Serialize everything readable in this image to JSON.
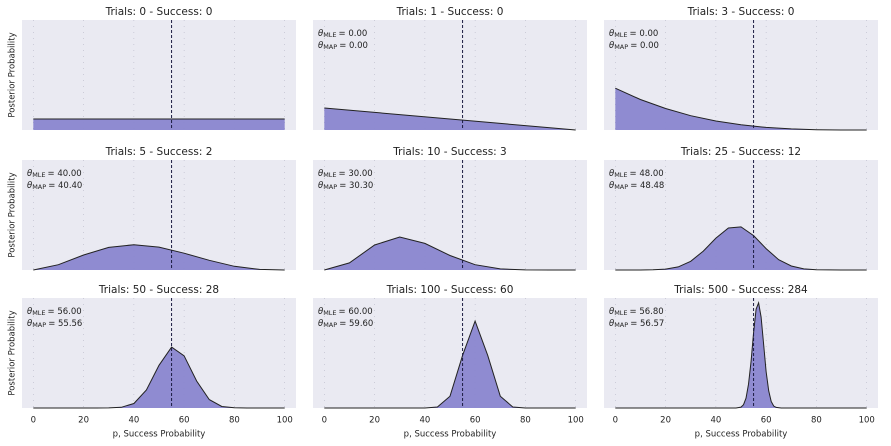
{
  "chart_data": [
    {
      "type": "area",
      "title": "Trials: 0 - Success: 0",
      "ylabel": "Posterior Probability",
      "x": [
        0,
        100
      ],
      "values": [
        0.1,
        0.1
      ],
      "xlim": [
        -4.5,
        104.5
      ],
      "ylim": [
        0,
        1
      ],
      "xticks": [
        0,
        20,
        40,
        60,
        80,
        100
      ],
      "xtick_labels": false,
      "vline": 55,
      "color": "#8a86cf",
      "grid": true,
      "annotations": []
    },
    {
      "type": "area",
      "title": "Trials: 1 - Success: 0",
      "x": [
        0,
        100
      ],
      "values": [
        0.2,
        0
      ],
      "xlim": [
        -4.5,
        104.5
      ],
      "ylim": [
        0,
        1
      ],
      "xticks": [
        0,
        20,
        40,
        60,
        80,
        100
      ],
      "xtick_labels": false,
      "vline": 55,
      "color": "#8a86cf",
      "grid": true,
      "annotations": [
        {
          "symbol": "θ",
          "subscript": "MLE",
          "text": "= 0.00"
        },
        {
          "symbol": "θ",
          "subscript": "MAP",
          "text": "= 0.00"
        }
      ]
    },
    {
      "type": "area",
      "title": "Trials: 3 - Success: 0",
      "x": [
        0,
        10,
        20,
        30,
        40,
        50,
        60,
        70,
        80,
        90,
        100
      ],
      "values": [
        0.38,
        0.277,
        0.195,
        0.13,
        0.082,
        0.048,
        0.024,
        0.01,
        0.003,
        0,
        0
      ],
      "xlim": [
        -4.5,
        104.5
      ],
      "ylim": [
        0,
        1
      ],
      "xticks": [
        0,
        20,
        40,
        60,
        80,
        100
      ],
      "xtick_labels": false,
      "vline": 55,
      "color": "#8a86cf",
      "grid": true,
      "annotations": [
        {
          "symbol": "θ",
          "subscript": "MLE",
          "text": "= 0.00"
        },
        {
          "symbol": "θ",
          "subscript": "MAP",
          "text": "= 0.00"
        }
      ]
    },
    {
      "type": "area",
      "title": "Trials: 5 - Success: 2",
      "ylabel": "Posterior Probability",
      "x": [
        0,
        10,
        20,
        30,
        40,
        50,
        60,
        70,
        80,
        90,
        100
      ],
      "values": [
        0,
        0.048,
        0.136,
        0.205,
        0.23,
        0.208,
        0.153,
        0.088,
        0.034,
        0.005,
        0
      ],
      "xlim": [
        -4.5,
        104.5
      ],
      "ylim": [
        0,
        1
      ],
      "xticks": [
        0,
        20,
        40,
        60,
        80,
        100
      ],
      "xtick_labels": false,
      "vline": 55,
      "color": "#8a86cf",
      "grid": true,
      "annotations": [
        {
          "symbol": "θ",
          "subscript": "MLE",
          "text": "= 40.00"
        },
        {
          "symbol": "θ",
          "subscript": "MAP",
          "text": "= 40.40"
        }
      ]
    },
    {
      "type": "area",
      "title": "Trials: 10 - Success: 3",
      "x": [
        0,
        10,
        20,
        30,
        40,
        50,
        60,
        70,
        80,
        90,
        100
      ],
      "values": [
        0,
        0.065,
        0.227,
        0.3,
        0.242,
        0.132,
        0.048,
        0.01,
        0.001,
        0,
        0
      ],
      "xlim": [
        -4.5,
        104.5
      ],
      "ylim": [
        0,
        1
      ],
      "xticks": [
        0,
        20,
        40,
        60,
        80,
        100
      ],
      "xtick_labels": false,
      "vline": 55,
      "color": "#8a86cf",
      "grid": true,
      "annotations": [
        {
          "symbol": "θ",
          "subscript": "MLE",
          "text": "= 30.00"
        },
        {
          "symbol": "θ",
          "subscript": "MAP",
          "text": "= 30.30"
        }
      ]
    },
    {
      "type": "area",
      "title": "Trials: 25 - Success: 12",
      "x": [
        0,
        10,
        15,
        20,
        25,
        30,
        35,
        40,
        45,
        50,
        55,
        60,
        65,
        70,
        75,
        80,
        90,
        100
      ],
      "values": [
        0,
        0,
        0.002,
        0.008,
        0.028,
        0.079,
        0.172,
        0.29,
        0.382,
        0.392,
        0.313,
        0.195,
        0.094,
        0.036,
        0.01,
        0.002,
        0,
        0
      ],
      "xlim": [
        -4.5,
        104.5
      ],
      "ylim": [
        0,
        1
      ],
      "xticks": [
        0,
        20,
        40,
        60,
        80,
        100
      ],
      "xtick_labels": false,
      "vline": 55,
      "color": "#8a86cf",
      "grid": true,
      "annotations": [
        {
          "symbol": "θ",
          "subscript": "MLE",
          "text": "= 48.00"
        },
        {
          "symbol": "θ",
          "subscript": "MAP",
          "text": "= 48.48"
        }
      ]
    },
    {
      "type": "area",
      "title": "Trials: 50 - Success: 28",
      "ylabel": "Posterior Probability",
      "xlabel": "p, Success Probability",
      "x": [
        0,
        25,
        30,
        35,
        40,
        45,
        50,
        55,
        60,
        65,
        70,
        75,
        80,
        85,
        100
      ],
      "values": [
        0,
        0,
        0.001,
        0.006,
        0.041,
        0.164,
        0.388,
        0.554,
        0.475,
        0.245,
        0.076,
        0.014,
        0.002,
        0,
        0
      ],
      "xlim": [
        -4.5,
        104.5
      ],
      "ylim": [
        0,
        1
      ],
      "xticks": [
        0,
        20,
        40,
        60,
        80,
        100
      ],
      "xtick_labels": true,
      "vline": 55,
      "color": "#8a86cf",
      "grid": true,
      "annotations": [
        {
          "symbol": "θ",
          "subscript": "MLE",
          "text": "= 56.00"
        },
        {
          "symbol": "θ",
          "subscript": "MAP",
          "text": "= 55.56"
        }
      ]
    },
    {
      "type": "area",
      "title": "Trials: 100 - Success: 60",
      "xlabel": "p, Success Probability",
      "x": [
        0,
        40,
        45,
        50,
        55,
        60,
        65,
        70,
        75,
        80,
        100
      ],
      "values": [
        0,
        0,
        0.009,
        0.107,
        0.479,
        0.79,
        0.479,
        0.107,
        0.009,
        0,
        0
      ],
      "xlim": [
        -4.5,
        104.5
      ],
      "ylim": [
        0,
        1
      ],
      "xticks": [
        0,
        20,
        40,
        60,
        80,
        100
      ],
      "xtick_labels": true,
      "vline": 55,
      "color": "#8a86cf",
      "grid": true,
      "annotations": [
        {
          "symbol": "θ",
          "subscript": "MLE",
          "text": "= 60.00"
        },
        {
          "symbol": "θ",
          "subscript": "MAP",
          "text": "= 59.60"
        }
      ]
    },
    {
      "type": "area",
      "title": "Trials: 500 - Success: 284",
      "xlabel": "p, Success Probability",
      "x": [
        0,
        48,
        50,
        51,
        52,
        53,
        54,
        55,
        56,
        57,
        58,
        59,
        60,
        61,
        62,
        63,
        64,
        66,
        100
      ],
      "values": [
        0,
        0,
        0.008,
        0.03,
        0.089,
        0.216,
        0.427,
        0.687,
        0.899,
        0.956,
        0.827,
        0.582,
        0.333,
        0.156,
        0.059,
        0.018,
        0.005,
        0,
        0
      ],
      "xlim": [
        -4.5,
        104.5
      ],
      "ylim": [
        0,
        1
      ],
      "xticks": [
        0,
        20,
        40,
        60,
        80,
        100
      ],
      "xtick_labels": true,
      "vline": 55,
      "color": "#8a86cf",
      "grid": true,
      "annotations": [
        {
          "symbol": "θ",
          "subscript": "MLE",
          "text": "= 56.80"
        },
        {
          "symbol": "θ",
          "subscript": "MAP",
          "text": "= 56.57"
        }
      ]
    }
  ]
}
